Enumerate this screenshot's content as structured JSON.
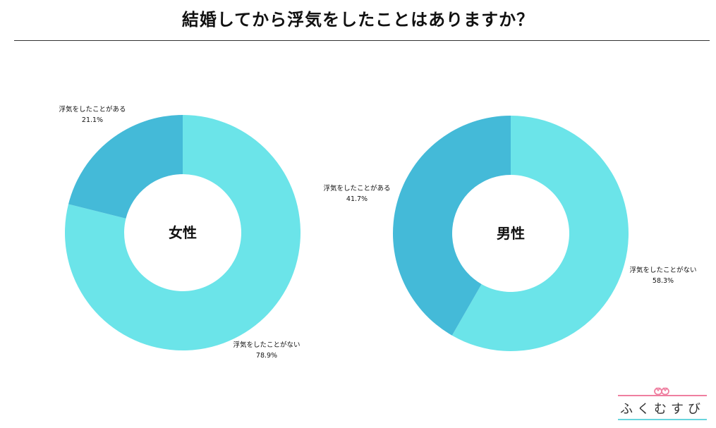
{
  "title": "結婚してから浮気をしたことはありますか？",
  "colors": {
    "no": "#6be4e9",
    "yes": "#44bad8",
    "rule": "#333333"
  },
  "brand": {
    "name": "ふくむすび",
    "accent_top": "#ef7fa0",
    "accent_bottom": "#69d5dd",
    "icon": "knot-icon"
  },
  "chart_data": [
    {
      "type": "pie",
      "center_label": "女性",
      "slices": [
        {
          "label": "浮気をしたことがない",
          "value": 78.9,
          "display": "78.9%",
          "color": "#6be4e9"
        },
        {
          "label": "浮気をしたことがある",
          "value": 21.1,
          "display": "21.1%",
          "color": "#44bad8"
        }
      ]
    },
    {
      "type": "pie",
      "center_label": "男性",
      "slices": [
        {
          "label": "浮気をしたことがない",
          "value": 58.3,
          "display": "58.3%",
          "color": "#6be4e9"
        },
        {
          "label": "浮気をしたことがある",
          "value": 41.7,
          "display": "41.7%",
          "color": "#44bad8"
        }
      ]
    }
  ]
}
